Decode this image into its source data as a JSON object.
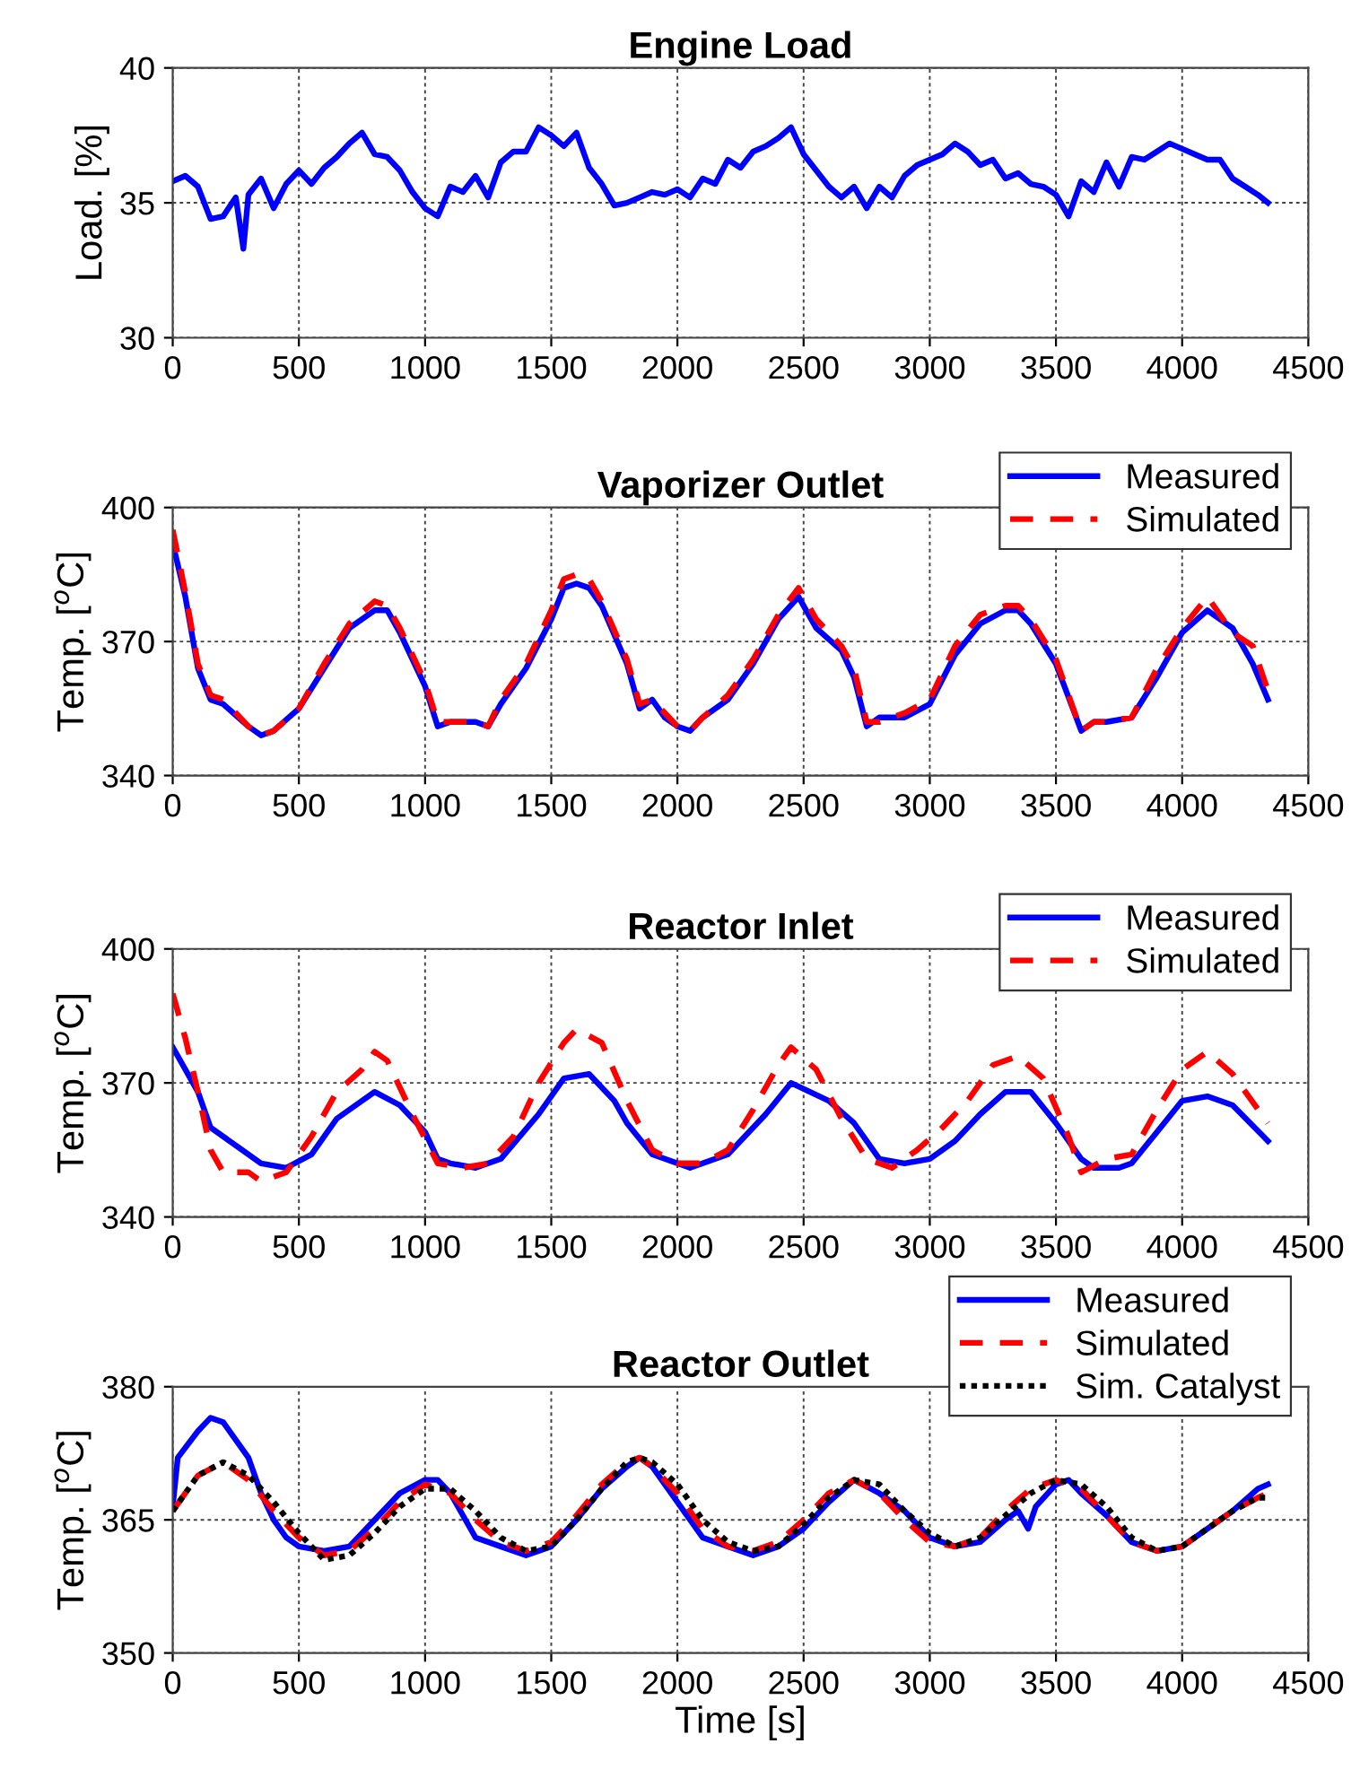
{
  "chart_data": [
    {
      "type": "line",
      "title": "Engine Load",
      "ylabel": "Load. [%]",
      "xlim": [
        0,
        4500
      ],
      "xticks": [
        0,
        500,
        1000,
        1500,
        2000,
        2500,
        3000,
        3500,
        4000,
        4500
      ],
      "ylim": [
        30,
        40
      ],
      "yticks": [
        30,
        35,
        40
      ],
      "grid": true,
      "legend": false,
      "series": [
        {
          "color": "#0000ff",
          "line_style": "solid",
          "x": [
            0,
            50,
            100,
            150,
            200,
            250,
            280,
            300,
            350,
            400,
            450,
            500,
            550,
            600,
            650,
            700,
            750,
            800,
            850,
            900,
            950,
            1000,
            1050,
            1100,
            1150,
            1200,
            1250,
            1300,
            1350,
            1400,
            1450,
            1500,
            1550,
            1600,
            1650,
            1700,
            1750,
            1800,
            1850,
            1900,
            1950,
            2000,
            2050,
            2100,
            2150,
            2200,
            2250,
            2300,
            2350,
            2400,
            2450,
            2500,
            2550,
            2600,
            2650,
            2700,
            2750,
            2800,
            2850,
            2900,
            2950,
            3000,
            3050,
            3100,
            3150,
            3200,
            3250,
            3300,
            3350,
            3400,
            3450,
            3500,
            3550,
            3600,
            3650,
            3700,
            3750,
            3800,
            3850,
            3900,
            3950,
            4000,
            4050,
            4100,
            4150,
            4200,
            4250,
            4300,
            4340
          ],
          "values": [
            35.8,
            36.0,
            35.6,
            34.4,
            34.5,
            35.2,
            33.3,
            35.3,
            35.9,
            34.8,
            35.7,
            36.2,
            35.7,
            36.3,
            36.7,
            37.2,
            37.6,
            36.8,
            36.7,
            36.2,
            35.4,
            34.8,
            34.5,
            35.6,
            35.4,
            36.0,
            35.2,
            36.5,
            36.9,
            36.9,
            37.8,
            37.5,
            37.1,
            37.6,
            36.3,
            35.7,
            34.9,
            35.0,
            35.2,
            35.4,
            35.3,
            35.5,
            35.2,
            35.9,
            35.7,
            36.6,
            36.3,
            36.9,
            37.1,
            37.4,
            37.8,
            36.8,
            36.2,
            35.6,
            35.2,
            35.6,
            34.8,
            35.6,
            35.2,
            36.0,
            36.4,
            36.6,
            36.8,
            37.2,
            36.9,
            36.4,
            36.6,
            35.9,
            36.1,
            35.7,
            35.6,
            35.3,
            34.5,
            35.8,
            35.4,
            36.5,
            35.6,
            36.7,
            36.6,
            36.9,
            37.2,
            37.0,
            36.8,
            36.6,
            36.6,
            35.9,
            35.6,
            35.3,
            35.0
          ]
        }
      ]
    },
    {
      "type": "line",
      "title": "Vaporizer Outlet",
      "ylabel": "Temp. [$^{o}$C]",
      "xlim": [
        0,
        4500
      ],
      "xticks": [
        0,
        500,
        1000,
        1500,
        2000,
        2500,
        3000,
        3500,
        4000,
        4500
      ],
      "ylim": [
        340,
        400
      ],
      "yticks": [
        340,
        370,
        400
      ],
      "grid": true,
      "legend": "top right",
      "series": [
        {
          "name": "Measured",
          "color": "#0000ff",
          "line_style": "solid",
          "x": [
            0,
            50,
            100,
            150,
            200,
            300,
            350,
            400,
            500,
            600,
            700,
            800,
            850,
            900,
            1000,
            1050,
            1100,
            1200,
            1250,
            1300,
            1400,
            1500,
            1550,
            1600,
            1650,
            1700,
            1800,
            1850,
            1900,
            1950,
            2000,
            2050,
            2100,
            2200,
            2300,
            2400,
            2480,
            2550,
            2650,
            2700,
            2750,
            2800,
            2900,
            3000,
            3100,
            3200,
            3300,
            3350,
            3400,
            3500,
            3600,
            3650,
            3700,
            3800,
            3900,
            4000,
            4100,
            4200,
            4280,
            4340
          ],
          "values": [
            392,
            380,
            364,
            357,
            356,
            351,
            349,
            350,
            355,
            364,
            373,
            377,
            377,
            372,
            360,
            351,
            352,
            352,
            351,
            356,
            364,
            375,
            382,
            383,
            382,
            378,
            365,
            355,
            357,
            353,
            351,
            350,
            353,
            357,
            365,
            375,
            380,
            373,
            368,
            362,
            351,
            353,
            353,
            356,
            367,
            374,
            377,
            377,
            374,
            365,
            350,
            352,
            352,
            353,
            362,
            372,
            377,
            373,
            365,
            357
          ]
        },
        {
          "name": "Simulated",
          "color": "#ff0000",
          "line_style": "dashed",
          "x": [
            0,
            50,
            100,
            150,
            200,
            300,
            350,
            400,
            500,
            600,
            700,
            800,
            850,
            900,
            1000,
            1050,
            1100,
            1200,
            1250,
            1300,
            1400,
            1500,
            1550,
            1600,
            1650,
            1700,
            1800,
            1850,
            1900,
            1950,
            2000,
            2050,
            2100,
            2200,
            2300,
            2400,
            2480,
            2550,
            2650,
            2700,
            2750,
            2800,
            2900,
            3000,
            3100,
            3200,
            3300,
            3350,
            3400,
            3500,
            3600,
            3650,
            3700,
            3800,
            3900,
            4000,
            4100,
            4200,
            4280,
            4340
          ],
          "values": [
            395,
            381,
            365,
            358,
            357,
            351,
            349,
            350,
            355,
            365,
            374,
            379,
            378,
            373,
            361,
            352,
            352,
            352,
            351,
            357,
            365,
            377,
            384,
            385,
            384,
            379,
            366,
            356,
            357,
            354,
            351,
            350,
            353,
            358,
            366,
            376,
            382,
            375,
            369,
            364,
            352,
            352,
            354,
            357,
            369,
            376,
            378,
            378,
            375,
            366,
            350,
            352,
            352,
            353,
            364,
            373,
            380,
            372,
            369,
            359
          ]
        }
      ]
    },
    {
      "type": "line",
      "title": "Reactor Inlet",
      "ylabel": "Temp. [$^{o}$C]",
      "xlim": [
        0,
        4500
      ],
      "xticks": [
        0,
        500,
        1000,
        1500,
        2000,
        2500,
        3000,
        3500,
        4000,
        4500
      ],
      "ylim": [
        340,
        400
      ],
      "yticks": [
        340,
        370,
        400
      ],
      "grid": true,
      "legend": "top right",
      "series": [
        {
          "name": "Measured",
          "color": "#0000ff",
          "line_style": "solid",
          "x": [
            0,
            100,
            150,
            250,
            350,
            450,
            550,
            650,
            800,
            900,
            1000,
            1050,
            1100,
            1200,
            1300,
            1450,
            1550,
            1650,
            1750,
            1800,
            1900,
            2000,
            2050,
            2100,
            2200,
            2350,
            2450,
            2600,
            2700,
            2800,
            2900,
            3000,
            3100,
            3200,
            3300,
            3400,
            3500,
            3600,
            3650,
            3750,
            3800,
            3900,
            4000,
            4100,
            4200,
            4340
          ],
          "values": [
            378,
            368,
            360,
            356,
            352,
            351,
            354,
            362,
            368,
            365,
            359,
            353,
            352,
            351,
            353,
            363,
            371,
            372,
            366,
            361,
            354,
            352,
            351,
            352,
            354,
            363,
            370,
            366,
            361,
            353,
            352,
            353,
            357,
            363,
            368,
            368,
            361,
            353,
            351,
            351,
            352,
            359,
            366,
            367,
            365,
            357
          ]
        },
        {
          "name": "Simulated",
          "color": "#ff0000",
          "line_style": "dashed",
          "x": [
            0,
            50,
            100,
            150,
            200,
            300,
            350,
            450,
            550,
            650,
            750,
            800,
            850,
            950,
            1050,
            1150,
            1250,
            1350,
            1450,
            1550,
            1600,
            1700,
            1800,
            1900,
            2000,
            2100,
            2200,
            2300,
            2400,
            2450,
            2550,
            2650,
            2750,
            2850,
            2950,
            3050,
            3150,
            3250,
            3350,
            3450,
            3550,
            3600,
            3700,
            3800,
            3900,
            4000,
            4100,
            4200,
            4340
          ],
          "values": [
            390,
            380,
            368,
            355,
            350,
            350,
            348,
            350,
            358,
            368,
            373,
            377,
            375,
            363,
            352,
            351,
            352,
            358,
            370,
            379,
            382,
            379,
            366,
            355,
            352,
            352,
            355,
            364,
            374,
            378,
            373,
            362,
            353,
            351,
            355,
            360,
            366,
            374,
            376,
            371,
            358,
            350,
            353,
            354,
            364,
            373,
            377,
            372,
            361
          ]
        }
      ]
    },
    {
      "type": "line",
      "title": "Reactor Outlet",
      "ylabel": "Temp. [$^{o}$C]",
      "xlabel": "Time [s]",
      "xlim": [
        0,
        4500
      ],
      "xticks": [
        0,
        500,
        1000,
        1500,
        2000,
        2500,
        3000,
        3500,
        4000,
        4500
      ],
      "ylim": [
        350,
        380
      ],
      "yticks": [
        350,
        365,
        380
      ],
      "grid": true,
      "legend": "top right",
      "series": [
        {
          "name": "Measured",
          "color": "#0000ff",
          "line_style": "solid",
          "x": [
            0,
            20,
            100,
            150,
            200,
            300,
            350,
            400,
            450,
            500,
            600,
            700,
            800,
            900,
            1000,
            1050,
            1100,
            1200,
            1300,
            1400,
            1500,
            1600,
            1700,
            1800,
            1850,
            1900,
            2000,
            2100,
            2200,
            2300,
            2400,
            2500,
            2600,
            2700,
            2800,
            2900,
            3000,
            3100,
            3200,
            3300,
            3350,
            3390,
            3420,
            3500,
            3550,
            3600,
            3700,
            3800,
            3900,
            4000,
            4100,
            4200,
            4300,
            4340
          ],
          "values": [
            366.5,
            372,
            375,
            376.5,
            376,
            372,
            368,
            365,
            363,
            362,
            361.5,
            362,
            365,
            368,
            369.5,
            369.5,
            368,
            363,
            362,
            361,
            362,
            365,
            368.5,
            371,
            372,
            371,
            367,
            363,
            362,
            361,
            362,
            364,
            367,
            369.5,
            368,
            366,
            363,
            362,
            362.5,
            365,
            366,
            364,
            366.5,
            369,
            369.5,
            368,
            365.5,
            362.5,
            361.5,
            362,
            364,
            366,
            368.5,
            369
          ]
        },
        {
          "name": "Simulated",
          "color": "#ff0000",
          "line_style": "dashed",
          "x": [
            0,
            100,
            200,
            300,
            400,
            500,
            600,
            700,
            800,
            900,
            1000,
            1100,
            1200,
            1300,
            1400,
            1500,
            1600,
            1700,
            1800,
            1850,
            1900,
            2000,
            2100,
            2200,
            2300,
            2400,
            2500,
            2600,
            2700,
            2800,
            2900,
            3000,
            3100,
            3200,
            3300,
            3400,
            3500,
            3600,
            3700,
            3800,
            3900,
            4000,
            4100,
            4200,
            4300,
            4340
          ],
          "values": [
            366,
            370,
            371.5,
            369.5,
            366,
            363,
            361,
            361.5,
            364,
            367,
            369,
            368,
            365,
            362.5,
            361.5,
            362.5,
            365.5,
            369,
            371.5,
            372,
            371,
            368,
            364,
            362,
            361.5,
            362.5,
            365,
            368,
            369.5,
            368,
            365,
            362.5,
            362,
            363,
            366,
            368.5,
            369.5,
            368.5,
            365.5,
            362.5,
            361.5,
            362,
            364,
            366,
            367.5,
            368
          ]
        },
        {
          "name": "Sim. Catalyst",
          "color": "#000000",
          "line_style": "dotted",
          "x": [
            0,
            100,
            200,
            300,
            400,
            500,
            600,
            700,
            800,
            900,
            1000,
            1100,
            1200,
            1300,
            1400,
            1500,
            1600,
            1700,
            1800,
            1850,
            1900,
            2000,
            2100,
            2200,
            2300,
            2400,
            2500,
            2600,
            2700,
            2800,
            2900,
            3000,
            3100,
            3200,
            3300,
            3400,
            3500,
            3600,
            3700,
            3800,
            3900,
            4000,
            4100,
            4200,
            4300,
            4340
          ],
          "values": [
            366,
            370,
            371.5,
            370,
            367,
            363.5,
            360.5,
            361,
            363.5,
            366.5,
            368.5,
            368.5,
            366,
            363,
            361.5,
            362,
            365,
            368.5,
            371.5,
            372,
            371.5,
            369,
            365,
            362.5,
            361.5,
            362,
            364.5,
            367.5,
            369.5,
            369,
            366,
            363.5,
            362,
            363,
            365.5,
            368,
            369.5,
            369,
            366.5,
            363,
            361.5,
            362,
            364,
            366,
            367.5,
            367.5
          ]
        }
      ]
    }
  ]
}
